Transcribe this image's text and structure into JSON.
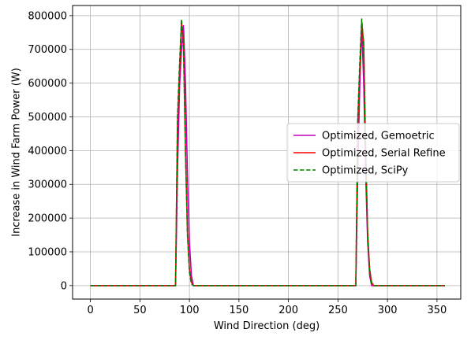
{
  "chart_data": {
    "type": "line",
    "title": "",
    "xlabel": "Wind Direction (deg)",
    "ylabel": "Increase in Wind Farm Power (W)",
    "xlim": [
      -18,
      374
    ],
    "ylim": [
      -40000,
      830000
    ],
    "xticks": [
      0,
      50,
      100,
      150,
      200,
      250,
      300,
      350
    ],
    "xtick_labels": [
      "0",
      "50",
      "100",
      "150",
      "200",
      "250",
      "300",
      "350"
    ],
    "yticks": [
      0,
      100000,
      200000,
      300000,
      400000,
      500000,
      600000,
      700000,
      800000
    ],
    "ytick_labels": [
      "0",
      "100000",
      "200000",
      "300000",
      "400000",
      "500000",
      "600000",
      "700000",
      "800000"
    ],
    "grid": true,
    "legend_position": "center-right",
    "series": [
      {
        "name": "Optimized, Gemoetric",
        "color": "#bf00bf",
        "style": "solid",
        "x": [
          0,
          86,
          88,
          90,
          92,
          94,
          96,
          98,
          100,
          102,
          104,
          106,
          266,
          268,
          270,
          272,
          274,
          276,
          278,
          280,
          282,
          284,
          286,
          358
        ],
        "y": [
          0,
          0,
          340000,
          590000,
          700000,
          770000,
          600000,
          330000,
          130000,
          30000,
          0,
          0,
          0,
          0,
          340000,
          590000,
          770000,
          600000,
          330000,
          130000,
          30000,
          0,
          0,
          0
        ]
      },
      {
        "name": "Optimized, Serial Refine",
        "color": "#ff0000",
        "style": "solid",
        "x": [
          0,
          86,
          88,
          90,
          92,
          94,
          96,
          98,
          100,
          102,
          104,
          106,
          266,
          268,
          270,
          272,
          274,
          276,
          278,
          280,
          282,
          284,
          286,
          358
        ],
        "y": [
          0,
          0,
          480000,
          640000,
          780000,
          720000,
          400000,
          160000,
          50000,
          10000,
          0,
          0,
          0,
          0,
          480000,
          640000,
          780000,
          720000,
          400000,
          160000,
          50000,
          10000,
          0,
          0
        ]
      },
      {
        "name": "Optimized, SciPy",
        "color": "#008000",
        "style": "dashed",
        "x": [
          0,
          86,
          88,
          90,
          92,
          94,
          96,
          98,
          100,
          102,
          104,
          106,
          266,
          268,
          270,
          272,
          274,
          276,
          278,
          280,
          282,
          284,
          286,
          358
        ],
        "y": [
          0,
          0,
          500000,
          660000,
          790000,
          700000,
          390000,
          150000,
          40000,
          5000,
          0,
          0,
          0,
          0,
          500000,
          660000,
          790000,
          700000,
          390000,
          150000,
          40000,
          5000,
          0,
          0
        ]
      }
    ]
  }
}
